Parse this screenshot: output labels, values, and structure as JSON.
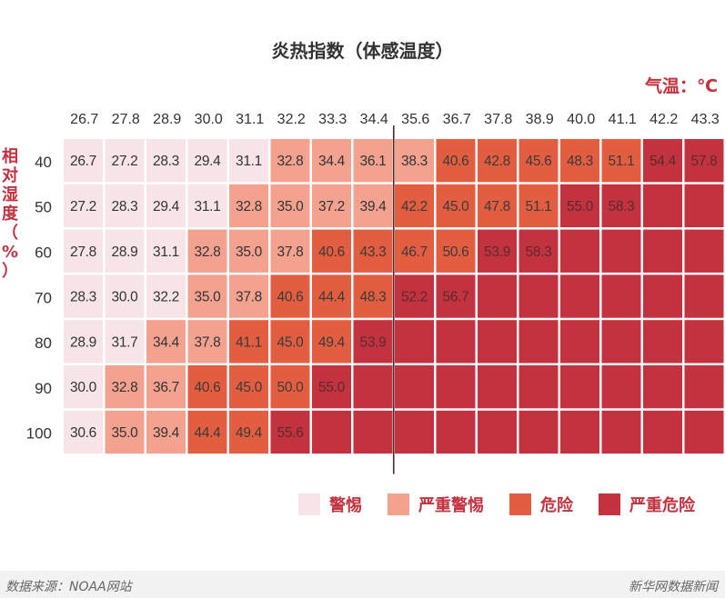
{
  "chart_data": {
    "type": "heatmap",
    "title": "炎热指数（体感温度）",
    "xlabel": "气温：℃",
    "ylabel": "相对湿度（%）",
    "x": [
      "26.7",
      "27.8",
      "28.9",
      "30.0",
      "31.1",
      "32.2",
      "33.3",
      "34.4",
      "35.6",
      "36.7",
      "37.8",
      "38.9",
      "40.0",
      "41.1",
      "42.2",
      "43.3"
    ],
    "y": [
      "40",
      "50",
      "60",
      "70",
      "80",
      "90",
      "100"
    ],
    "cells": [
      {
        "values": [
          "26.7",
          "27.2",
          "28.3",
          "29.4",
          "31.1",
          "32.8",
          "34.4",
          "36.1",
          "38.3",
          "40.6",
          "42.8",
          "45.6",
          "48.3",
          "51.1",
          "54.4",
          "57.8"
        ],
        "levels": [
          0,
          0,
          0,
          0,
          0,
          1,
          1,
          1,
          1,
          2,
          2,
          2,
          2,
          2,
          3,
          3
        ]
      },
      {
        "values": [
          "27.2",
          "28.3",
          "29.4",
          "31.1",
          "32.8",
          "35.0",
          "37.2",
          "39.4",
          "42.2",
          "45.0",
          "47.8",
          "51.1",
          "55.0",
          "58.3",
          "",
          ""
        ],
        "levels": [
          0,
          0,
          0,
          0,
          1,
          1,
          1,
          1,
          2,
          2,
          2,
          2,
          3,
          3,
          3,
          3
        ]
      },
      {
        "values": [
          "27.8",
          "28.9",
          "31.1",
          "32.8",
          "35.0",
          "37.8",
          "40.6",
          "43.3",
          "46.7",
          "50.6",
          "53.9",
          "58.3",
          "",
          "",
          "",
          ""
        ],
        "levels": [
          0,
          0,
          0,
          1,
          1,
          1,
          2,
          2,
          2,
          2,
          3,
          3,
          3,
          3,
          3,
          3
        ]
      },
      {
        "values": [
          "28.3",
          "30.0",
          "32.2",
          "35.0",
          "37.8",
          "40.6",
          "44.4",
          "48.3",
          "52.2",
          "56.7",
          "",
          "",
          "",
          "",
          "",
          ""
        ],
        "levels": [
          0,
          0,
          0,
          1,
          1,
          2,
          2,
          2,
          3,
          3,
          3,
          3,
          3,
          3,
          3,
          3
        ]
      },
      {
        "values": [
          "28.9",
          "31.7",
          "34.4",
          "37.8",
          "41.1",
          "45.0",
          "49.4",
          "53.9",
          "",
          "",
          "",
          "",
          "",
          "",
          "",
          ""
        ],
        "levels": [
          0,
          0,
          1,
          1,
          2,
          2,
          2,
          3,
          3,
          3,
          3,
          3,
          3,
          3,
          3,
          3
        ]
      },
      {
        "values": [
          "30.0",
          "32.8",
          "36.7",
          "40.6",
          "45.0",
          "50.0",
          "55.0",
          "",
          "",
          "",
          "",
          "",
          "",
          "",
          "",
          ""
        ],
        "levels": [
          0,
          1,
          1,
          2,
          2,
          2,
          3,
          3,
          3,
          3,
          3,
          3,
          3,
          3,
          3,
          3
        ]
      },
      {
        "values": [
          "30.6",
          "35.0",
          "39.4",
          "44.4",
          "49.4",
          "55.6",
          "",
          "",
          "",
          "",
          "",
          "",
          "",
          "",
          "",
          ""
        ],
        "levels": [
          0,
          1,
          1,
          2,
          2,
          3,
          3,
          3,
          3,
          3,
          3,
          3,
          3,
          3,
          3,
          3
        ]
      }
    ],
    "legend": [
      {
        "label": "警惕",
        "color": "#f6e4e7"
      },
      {
        "label": "严重警惕",
        "color": "#f4a290"
      },
      {
        "label": "危险",
        "color": "#e35e41"
      },
      {
        "label": "严重危险",
        "color": "#c3323f"
      }
    ],
    "marker_after_x": "34.4",
    "legend_position": "bottom-right"
  },
  "footer": {
    "source": "数据来源：NOAA网站",
    "credit": "新华网数据新闻"
  }
}
